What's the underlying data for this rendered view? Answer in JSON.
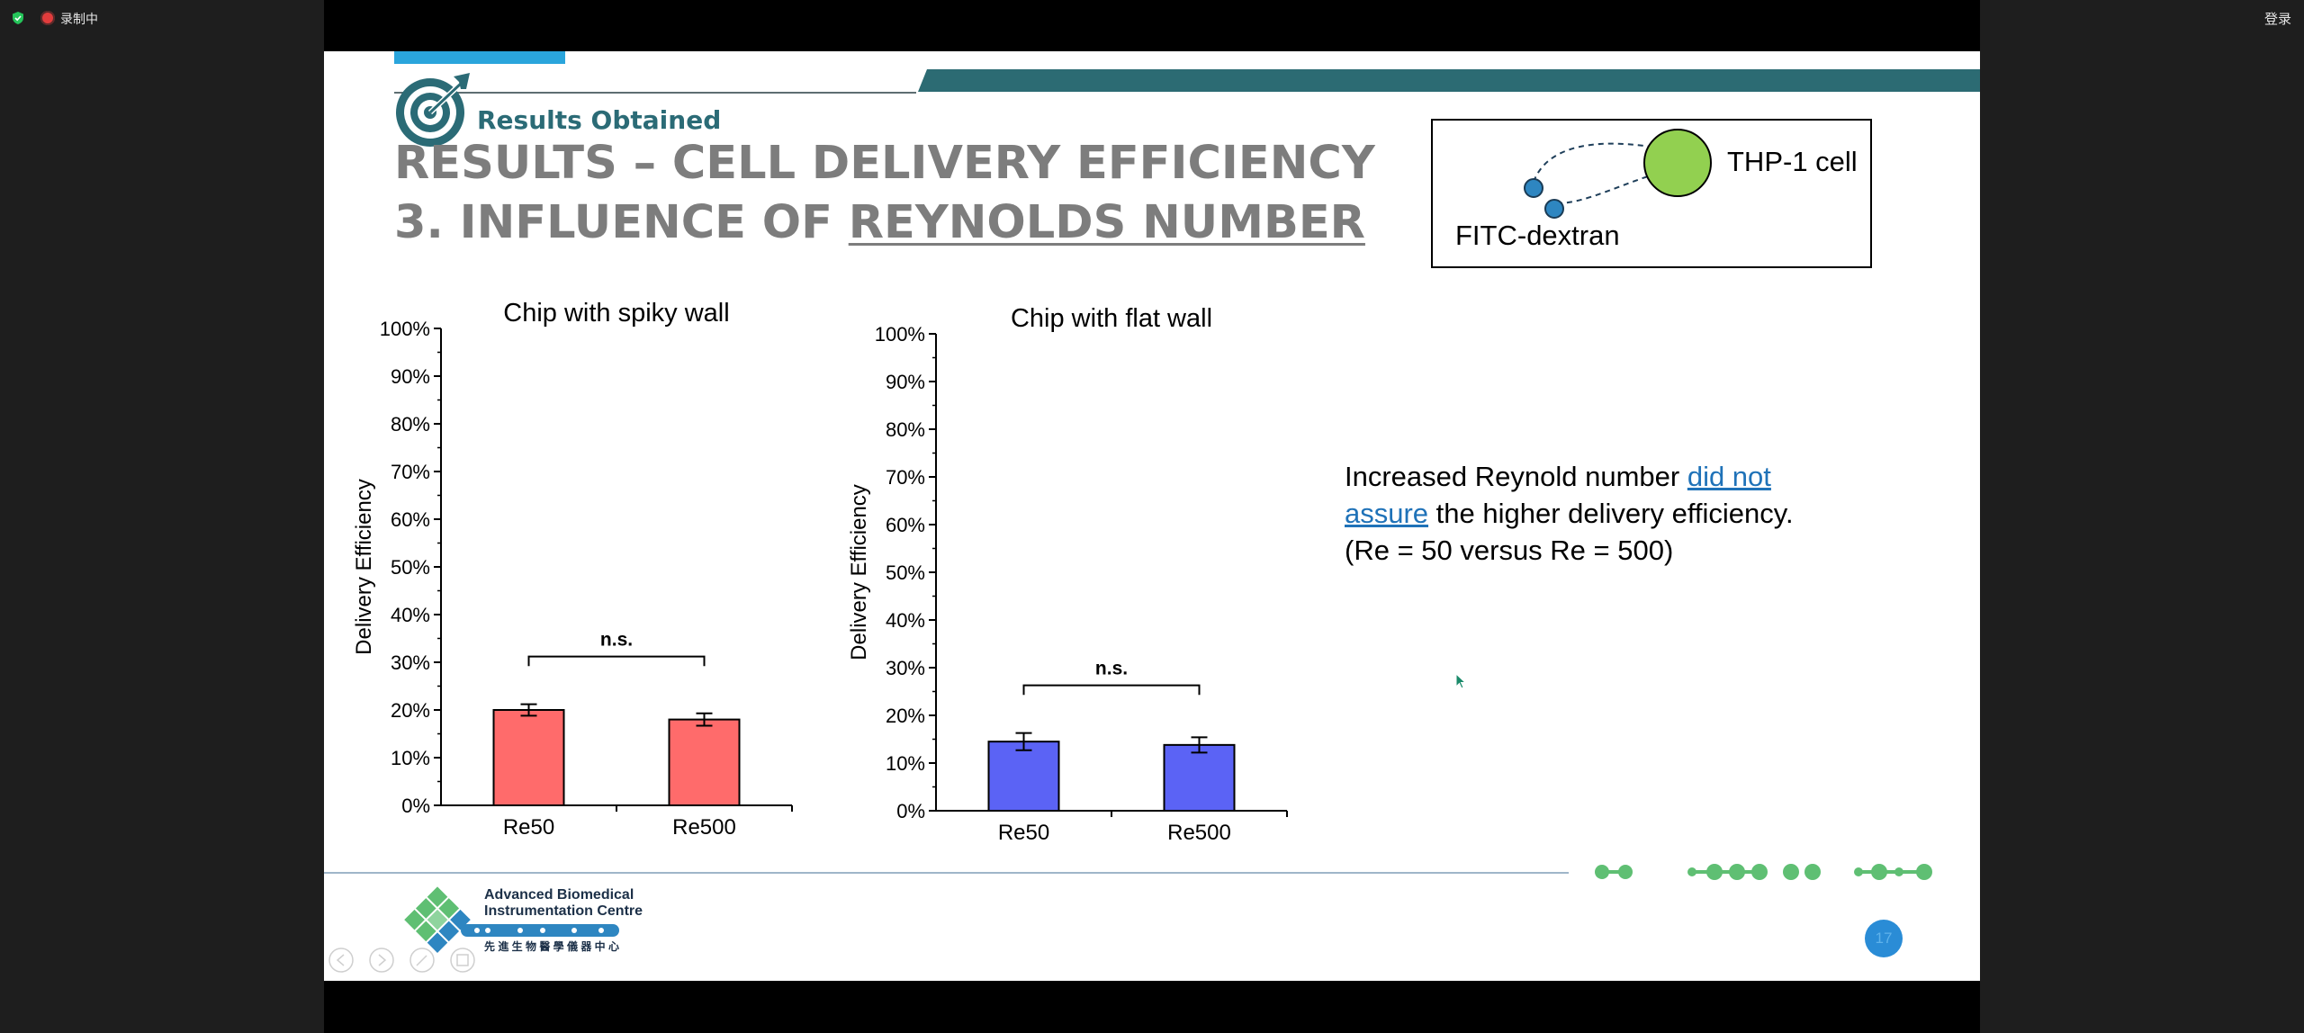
{
  "topbar": {
    "recording_label": "录制中",
    "login_label": "登录"
  },
  "slide": {
    "section_label": "Results Obtained",
    "title_line1": "RESULTS – CELL DELIVERY EFFICIENCY",
    "title_line2_prefix": "3. INFLUENCE OF ",
    "title_line2_underlined": "REYNOLDS NUMBER",
    "schematic": {
      "cell_label": "THP-1 cell",
      "dye_label": "FITC-dextran"
    },
    "statement": {
      "part1": "Increased Reynold number ",
      "link": "did not assure",
      "part2": " the higher delivery efficiency.",
      "line3": "(Re = 50 versus Re = 500)"
    },
    "footer": {
      "org_line1": "Advanced Biomedical",
      "org_line2": "Instrumentation Centre",
      "org_chinese": "先 進 生 物 醫 學 儀 器 中 心",
      "page_number": "17"
    }
  },
  "chart_data": [
    {
      "type": "bar",
      "title": "Chip with spiky wall",
      "ylabel": "Delivery Efficiency",
      "categories": [
        "Re50",
        "Re500"
      ],
      "values": [
        20,
        18
      ],
      "errors": [
        1.2,
        1.3
      ],
      "ylim": [
        0,
        100
      ],
      "yticks": [
        "0%",
        "10%",
        "20%",
        "30%",
        "40%",
        "50%",
        "60%",
        "70%",
        "80%",
        "90%",
        "100%"
      ],
      "significance": "n.s.",
      "color": "#ff6b6b"
    },
    {
      "type": "bar",
      "title": "Chip with flat wall",
      "ylabel": "Delivery Efficiency",
      "categories": [
        "Re50",
        "Re500"
      ],
      "values": [
        14.5,
        13.8
      ],
      "errors": [
        1.8,
        1.6
      ],
      "ylim": [
        0,
        100
      ],
      "yticks": [
        "0%",
        "10%",
        "20%",
        "30%",
        "40%",
        "50%",
        "60%",
        "70%",
        "80%",
        "90%",
        "100%"
      ],
      "significance": "n.s.",
      "color": "#5b63f5"
    }
  ]
}
